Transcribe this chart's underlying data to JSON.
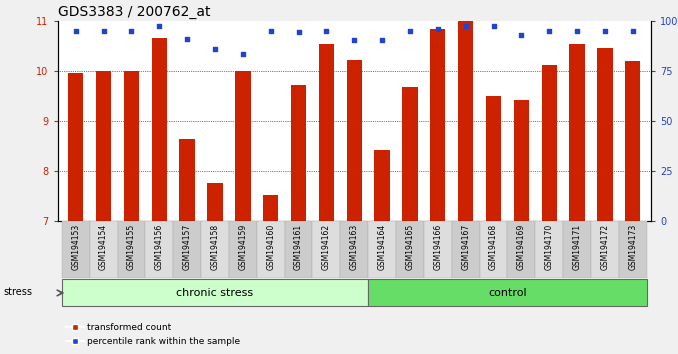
{
  "title": "GDS3383 / 200762_at",
  "categories": [
    "GSM194153",
    "GSM194154",
    "GSM194155",
    "GSM194156",
    "GSM194157",
    "GSM194158",
    "GSM194159",
    "GSM194160",
    "GSM194161",
    "GSM194162",
    "GSM194163",
    "GSM194164",
    "GSM194165",
    "GSM194166",
    "GSM194167",
    "GSM194168",
    "GSM194169",
    "GSM194170",
    "GSM194171",
    "GSM194172",
    "GSM194173"
  ],
  "bar_values": [
    9.97,
    10.01,
    10.0,
    10.67,
    8.65,
    7.77,
    10.0,
    7.53,
    9.72,
    10.55,
    10.23,
    8.42,
    9.68,
    10.85,
    11.0,
    9.5,
    9.43,
    10.12,
    10.55,
    10.47,
    10.2
  ],
  "dot_values": [
    10.8,
    10.8,
    10.8,
    10.9,
    10.65,
    10.45,
    10.35,
    10.8,
    10.78,
    10.8,
    10.63,
    10.63,
    10.8,
    10.85,
    10.9,
    10.9,
    10.72,
    10.8,
    10.8,
    10.8,
    10.8
  ],
  "bar_color": "#cc2200",
  "dot_color": "#2244cc",
  "ylim_left": [
    7,
    11
  ],
  "ylim_right": [
    0,
    100
  ],
  "yticks_left": [
    7,
    8,
    9,
    10,
    11
  ],
  "yticks_right": [
    0,
    25,
    50,
    75,
    100
  ],
  "chronic_count": 11,
  "control_count": 10,
  "group1_label": "chronic stress",
  "group2_label": "control",
  "stress_label": "stress",
  "legend_bar": "transformed count",
  "legend_dot": "percentile rank within the sample",
  "bg_color": "#f0f0f0",
  "plot_bg": "#ffffff",
  "chronic_bg": "#ccffcc",
  "control_bg": "#66dd66",
  "title_fontsize": 10,
  "tick_fontsize": 7,
  "label_fontsize": 5.5,
  "group_fontsize": 8
}
